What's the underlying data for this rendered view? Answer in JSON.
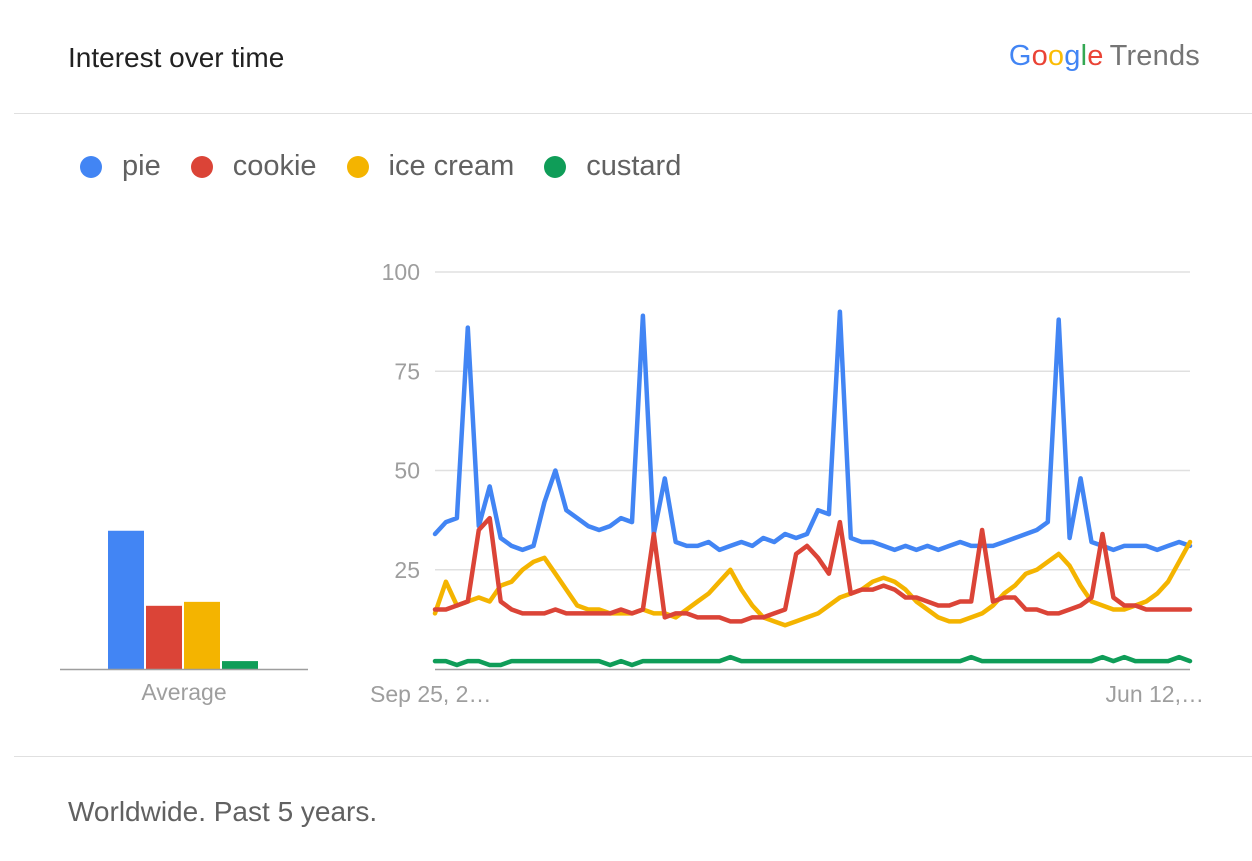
{
  "header": {
    "title": "Interest over time",
    "brand": {
      "google": [
        "G",
        "o",
        "o",
        "g",
        "l",
        "e"
      ],
      "trends": "Trends"
    }
  },
  "legend": [
    {
      "label": "pie",
      "color": "#4285F4"
    },
    {
      "label": "cookie",
      "color": "#DB4437"
    },
    {
      "label": "ice cream",
      "color": "#F4B400"
    },
    {
      "label": "custard",
      "color": "#0F9D58"
    }
  ],
  "footer": {
    "text": "Worldwide. Past 5 years."
  },
  "chart_data": [
    {
      "type": "bar",
      "xlabel": "Average",
      "categories": [
        "pie",
        "cookie",
        "ice cream",
        "custard"
      ],
      "values": [
        35,
        16,
        17,
        2
      ],
      "colors": [
        "#4285F4",
        "#DB4437",
        "#F4B400",
        "#0F9D58"
      ],
      "ylim": [
        0,
        100
      ]
    },
    {
      "type": "line",
      "x_tick_labels": [
        "Sep 25, 2…",
        "Jun 12,…"
      ],
      "y_ticks": [
        25,
        50,
        75,
        100
      ],
      "ylim": [
        0,
        100
      ],
      "grid": true,
      "x_count": 70,
      "series": [
        {
          "name": "pie",
          "color": "#4285F4",
          "values": [
            34,
            37,
            38,
            86,
            36,
            46,
            33,
            31,
            30,
            31,
            42,
            50,
            40,
            38,
            36,
            35,
            36,
            38,
            37,
            89,
            34,
            48,
            32,
            31,
            31,
            32,
            30,
            31,
            32,
            31,
            33,
            32,
            34,
            33,
            34,
            40,
            39,
            90,
            33,
            32,
            32,
            31,
            30,
            31,
            30,
            31,
            30,
            31,
            32,
            31,
            31,
            31,
            32,
            33,
            34,
            35,
            37,
            88,
            33,
            48,
            32,
            31,
            30,
            31,
            31,
            31,
            30,
            31,
            32,
            31
          ]
        },
        {
          "name": "cookie",
          "color": "#DB4437",
          "values": [
            15,
            15,
            16,
            17,
            35,
            38,
            17,
            15,
            14,
            14,
            14,
            15,
            14,
            14,
            14,
            14,
            14,
            15,
            14,
            15,
            34,
            13,
            14,
            14,
            13,
            13,
            13,
            12,
            12,
            13,
            13,
            14,
            15,
            29,
            31,
            28,
            24,
            37,
            19,
            20,
            20,
            21,
            20,
            18,
            18,
            17,
            16,
            16,
            17,
            17,
            35,
            17,
            18,
            18,
            15,
            15,
            14,
            14,
            15,
            16,
            18,
            34,
            18,
            16,
            16,
            15,
            15,
            15,
            15,
            15
          ]
        },
        {
          "name": "ice cream",
          "color": "#F4B400",
          "values": [
            14,
            22,
            16,
            17,
            18,
            17,
            21,
            22,
            25,
            27,
            28,
            24,
            20,
            16,
            15,
            15,
            14,
            14,
            14,
            15,
            14,
            14,
            13,
            15,
            17,
            19,
            22,
            25,
            20,
            16,
            13,
            12,
            11,
            12,
            13,
            14,
            16,
            18,
            19,
            20,
            22,
            23,
            22,
            20,
            17,
            15,
            13,
            12,
            12,
            13,
            14,
            16,
            19,
            21,
            24,
            25,
            27,
            29,
            26,
            21,
            17,
            16,
            15,
            15,
            16,
            17,
            19,
            22,
            27,
            32
          ]
        },
        {
          "name": "custard",
          "color": "#0F9D58",
          "values": [
            2,
            2,
            1,
            2,
            2,
            1,
            1,
            2,
            2,
            2,
            2,
            2,
            2,
            2,
            2,
            2,
            1,
            2,
            1,
            2,
            2,
            2,
            2,
            2,
            2,
            2,
            2,
            3,
            2,
            2,
            2,
            2,
            2,
            2,
            2,
            2,
            2,
            2,
            2,
            2,
            2,
            2,
            2,
            2,
            2,
            2,
            2,
            2,
            2,
            3,
            2,
            2,
            2,
            2,
            2,
            2,
            2,
            2,
            2,
            2,
            2,
            3,
            2,
            3,
            2,
            2,
            2,
            2,
            3,
            2
          ]
        }
      ]
    }
  ],
  "colors": {
    "grid": "#e0e0e0",
    "axis_text": "#9e9e9e",
    "baseline": "#9e9e9e"
  }
}
